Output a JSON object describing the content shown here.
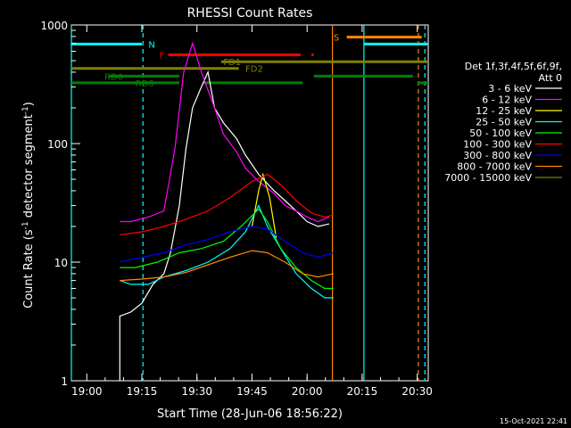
{
  "chart_data": {
    "type": "line",
    "title": "RHESSI Count Rates",
    "xlabel": "Start Time (28-Jun-06 18:56:22)",
    "ylabel_main": "Count Rate (s",
    "ylabel_sup1": "-1",
    "ylabel_mid": " detector segment",
    "ylabel_sup2": "-1",
    "ylabel_end": ")",
    "y_scale": "log",
    "ylim": [
      1,
      1000
    ],
    "xlim_minutes": [
      18.93,
      20.55
    ],
    "x_ticks": [
      {
        "t": 19.0,
        "label": "19:00"
      },
      {
        "t": 19.25,
        "label": "19:15"
      },
      {
        "t": 19.5,
        "label": "19:30"
      },
      {
        "t": 19.75,
        "label": "19:45"
      },
      {
        "t": 20.0,
        "label": "20:00"
      },
      {
        "t": 20.25,
        "label": "20:15"
      },
      {
        "t": 20.5,
        "label": "20:30"
      }
    ],
    "y_ticks": [
      {
        "v": 1,
        "label": "1"
      },
      {
        "v": 10,
        "label": "10"
      },
      {
        "v": 100,
        "label": "100"
      },
      {
        "v": 1000,
        "label": "1000"
      }
    ],
    "legend_header": [
      "Det 1f,3f,4f,5f,6f,9f,",
      "Att 0"
    ],
    "series": [
      {
        "name": "3 - 6 keV",
        "color": "#ffffff",
        "points": [
          [
            19.15,
            1
          ],
          [
            19.15,
            3.5
          ],
          [
            19.2,
            3.8
          ],
          [
            19.25,
            4.5
          ],
          [
            19.3,
            6.5
          ],
          [
            19.35,
            8
          ],
          [
            19.38,
            12
          ],
          [
            19.42,
            30
          ],
          [
            19.45,
            90
          ],
          [
            19.48,
            200
          ],
          [
            19.52,
            300
          ],
          [
            19.55,
            400
          ],
          [
            19.58,
            200
          ],
          [
            19.62,
            150
          ],
          [
            19.68,
            110
          ],
          [
            19.72,
            80
          ],
          [
            19.78,
            55
          ],
          [
            19.85,
            40
          ],
          [
            19.9,
            33
          ],
          [
            19.95,
            27
          ],
          [
            20.0,
            22
          ],
          [
            20.05,
            20
          ],
          [
            20.1,
            21
          ]
        ]
      },
      {
        "name": "6 - 12 keV",
        "color": "#ff00ff",
        "points": [
          [
            19.15,
            22
          ],
          [
            19.2,
            22
          ],
          [
            19.28,
            24
          ],
          [
            19.35,
            27
          ],
          [
            19.4,
            90
          ],
          [
            19.44,
            400
          ],
          [
            19.48,
            700
          ],
          [
            19.52,
            400
          ],
          [
            19.58,
            200
          ],
          [
            19.62,
            120
          ],
          [
            19.68,
            85
          ],
          [
            19.72,
            62
          ],
          [
            19.78,
            48
          ],
          [
            19.85,
            38
          ],
          [
            19.9,
            30
          ],
          [
            19.95,
            27
          ],
          [
            20.0,
            24
          ],
          [
            20.05,
            22
          ],
          [
            20.1,
            24
          ]
        ]
      },
      {
        "name": "12 - 25 keV",
        "color": "#ffff00",
        "points": [
          [
            19.75,
            20
          ],
          [
            19.78,
            40
          ],
          [
            19.8,
            55
          ],
          [
            19.83,
            35
          ],
          [
            19.86,
            16
          ]
        ]
      },
      {
        "name": "25 - 50 keV",
        "color": "#00ffff",
        "points": [
          [
            19.15,
            7
          ],
          [
            19.2,
            6.5
          ],
          [
            19.28,
            6.5
          ],
          [
            19.35,
            7.5
          ],
          [
            19.45,
            8.5
          ],
          [
            19.55,
            10
          ],
          [
            19.65,
            13
          ],
          [
            19.72,
            18
          ],
          [
            19.78,
            30
          ],
          [
            19.82,
            20
          ],
          [
            19.88,
            13
          ],
          [
            19.95,
            8
          ],
          [
            20.02,
            6
          ],
          [
            20.08,
            5
          ],
          [
            20.12,
            5
          ]
        ]
      },
      {
        "name": "50 - 100 keV",
        "color": "#00ff00",
        "points": [
          [
            19.15,
            9
          ],
          [
            19.22,
            9
          ],
          [
            19.32,
            10
          ],
          [
            19.42,
            12
          ],
          [
            19.52,
            13
          ],
          [
            19.62,
            15
          ],
          [
            19.7,
            20
          ],
          [
            19.78,
            28
          ],
          [
            19.82,
            22
          ],
          [
            19.88,
            13
          ],
          [
            19.95,
            9
          ],
          [
            20.02,
            7
          ],
          [
            20.08,
            6
          ],
          [
            20.12,
            6
          ]
        ]
      },
      {
        "name": "100 - 300 keV",
        "color": "#ff0000",
        "points": [
          [
            19.15,
            17
          ],
          [
            19.25,
            18
          ],
          [
            19.35,
            20
          ],
          [
            19.45,
            23
          ],
          [
            19.55,
            27
          ],
          [
            19.65,
            35
          ],
          [
            19.75,
            48
          ],
          [
            19.82,
            55
          ],
          [
            19.88,
            45
          ],
          [
            19.95,
            33
          ],
          [
            20.02,
            26
          ],
          [
            20.08,
            24
          ],
          [
            20.12,
            25
          ]
        ]
      },
      {
        "name": "300 - 800 keV",
        "color": "#0000ff",
        "points": [
          [
            19.15,
            10
          ],
          [
            19.25,
            11
          ],
          [
            19.35,
            12
          ],
          [
            19.45,
            14
          ],
          [
            19.55,
            15.5
          ],
          [
            19.65,
            18
          ],
          [
            19.75,
            20
          ],
          [
            19.82,
            19
          ],
          [
            19.9,
            15
          ],
          [
            19.98,
            12
          ],
          [
            20.05,
            11
          ],
          [
            20.12,
            12
          ]
        ]
      },
      {
        "name": "800 - 7000 keV",
        "color": "#ff8800",
        "points": [
          [
            19.15,
            7
          ],
          [
            19.25,
            7.2
          ],
          [
            19.35,
            7.5
          ],
          [
            19.45,
            8.2
          ],
          [
            19.55,
            9.5
          ],
          [
            19.65,
            11
          ],
          [
            19.75,
            12.5
          ],
          [
            19.82,
            12
          ],
          [
            19.9,
            10
          ],
          [
            19.98,
            8
          ],
          [
            20.05,
            7.5
          ],
          [
            20.12,
            8
          ]
        ]
      },
      {
        "name": "7000 - 15000 keV",
        "color": "#808000",
        "points": []
      }
    ],
    "segments": [
      {
        "label": "N",
        "color": "#00ffff",
        "level": 690,
        "ranges": [
          [
            18.93,
            19.25
          ]
        ],
        "label_t": 19.28
      },
      {
        "label": "S",
        "color": "#ff8800",
        "level": 790,
        "ranges": [
          [
            20.18,
            20.52
          ]
        ],
        "label_t": 20.12
      },
      {
        "label": "",
        "color": "#00ffff",
        "level": 690,
        "ranges": [
          [
            20.26,
            20.55
          ]
        ],
        "label_t": null
      },
      {
        "label": "F",
        "color": "#ff0000",
        "level": 560,
        "ranges": [
          [
            19.37,
            19.97
          ],
          [
            20.02,
            20.03
          ]
        ],
        "label_t": 19.33
      },
      {
        "label": "FD1",
        "color": "#808000",
        "level": 490,
        "ranges": [
          [
            19.61,
            20.55
          ]
        ],
        "label_t": 19.62
      },
      {
        "label": "FD2",
        "color": "#808000",
        "level": 430,
        "ranges": [
          [
            18.93,
            19.69
          ]
        ],
        "label_t": 19.72
      },
      {
        "label": "RD0",
        "color": "#008000",
        "level": 370,
        "ranges": [
          [
            19.1,
            19.42
          ],
          [
            20.03,
            20.48
          ]
        ],
        "label_t": 19.08
      },
      {
        "label": "RD6",
        "color": "#008000",
        "level": 325,
        "ranges": [
          [
            18.93,
            19.42
          ],
          [
            19.53,
            19.98
          ],
          [
            20.5,
            20.55
          ]
        ],
        "label_t": 19.22
      }
    ],
    "vlines": [
      {
        "t": 18.93,
        "color": "#00ffff",
        "dashed": false
      },
      {
        "t": 19.255,
        "color": "#00ffff",
        "dashed": true
      },
      {
        "t": 20.115,
        "color": "#ff8800",
        "dashed": false
      },
      {
        "t": 20.258,
        "color": "#00ffff",
        "dashed": false
      },
      {
        "t": 20.505,
        "color": "#ff8800",
        "dashed": true
      },
      {
        "t": 20.535,
        "color": "#00ffff",
        "dashed": true
      }
    ],
    "footer_timestamp": "15-Oct-2021 22:41"
  }
}
